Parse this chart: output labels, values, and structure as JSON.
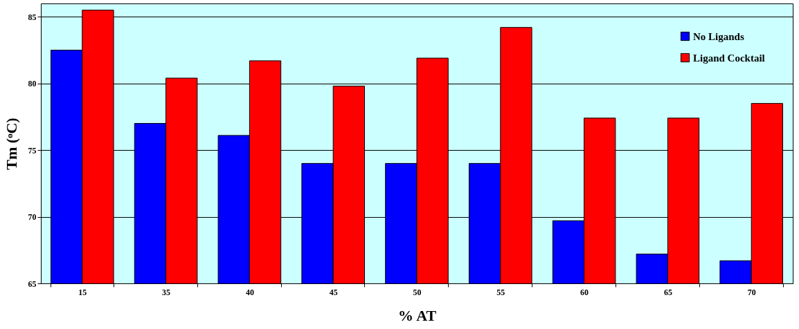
{
  "chart_data": {
    "type": "bar",
    "xlabel": "% AT",
    "ylabel": "Tm (ᵒC)",
    "categories": [
      "15",
      "35",
      "40",
      "45",
      "50",
      "55",
      "60",
      "65",
      "70"
    ],
    "series": [
      {
        "name": "No Ligands",
        "color": "#0000ff",
        "values": [
          82.5,
          77.0,
          76.1,
          74.0,
          74.0,
          74.0,
          69.7,
          67.2,
          66.7
        ]
      },
      {
        "name": "Ligand Cocktail",
        "color": "#ff0000",
        "values": [
          85.5,
          80.4,
          81.7,
          79.8,
          81.9,
          84.2,
          77.4,
          77.4,
          78.5
        ]
      }
    ],
    "ylim": [
      65,
      86
    ],
    "yticks": [
      65,
      70,
      75,
      80,
      85
    ],
    "grid": "y",
    "legend": "top right"
  }
}
